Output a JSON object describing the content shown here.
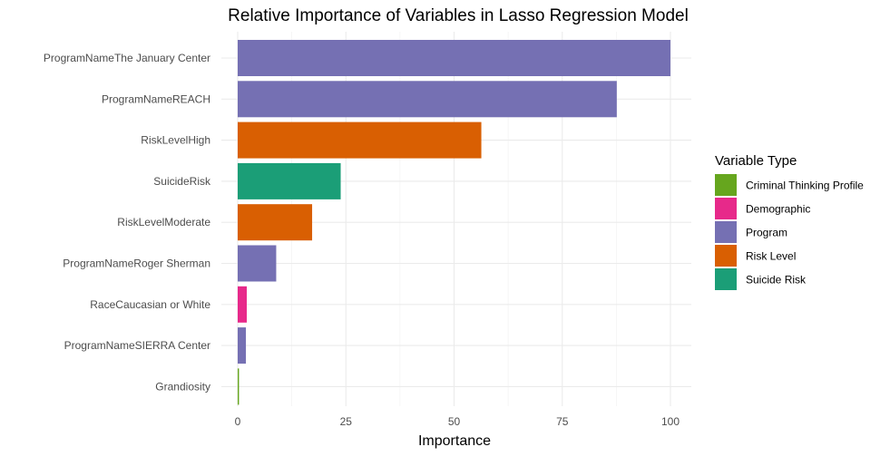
{
  "chart_data": {
    "type": "bar",
    "orientation": "horizontal",
    "title": "Relative Importance of Variables in Lasso Regression Model",
    "xlabel": "Importance",
    "ylabel": "",
    "xlim": [
      0,
      100
    ],
    "xticks": [
      0,
      25,
      50,
      75,
      100
    ],
    "grid": true,
    "legend_position": "right",
    "legend_title": "Variable Type",
    "legend": [
      {
        "label": "Criminal Thinking Profile",
        "color": "#66a61e"
      },
      {
        "label": "Demographic",
        "color": "#e7298a"
      },
      {
        "label": "Program",
        "color": "#7570b3"
      },
      {
        "label": "Risk Level",
        "color": "#d95f02"
      },
      {
        "label": "Suicide Risk",
        "color": "#1b9e77"
      }
    ],
    "categories": [
      "ProgramNameThe January Center",
      "ProgramNameREACH",
      "RiskLevelHigh",
      "SuicideRisk",
      "RiskLevelModerate",
      "ProgramNameRoger Sherman",
      "RaceCaucasian or White",
      "ProgramNameSIERRA Center",
      "Grandiosity"
    ],
    "values": [
      100,
      87.6,
      56.3,
      23.8,
      17.2,
      8.9,
      2.1,
      1.9,
      0.3
    ],
    "groups": [
      "Program",
      "Program",
      "Risk Level",
      "Suicide Risk",
      "Risk Level",
      "Program",
      "Demographic",
      "Program",
      "Criminal Thinking Profile"
    ]
  }
}
